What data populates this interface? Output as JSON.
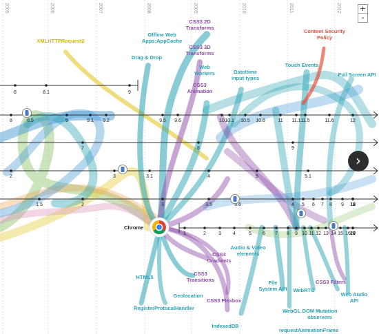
{
  "years": [
    "2005",
    "2006",
    "2007",
    "2008",
    "2009",
    "2010",
    "2011",
    "2012"
  ],
  "zoom": {
    "in": "+",
    "out": "-"
  },
  "next_icon": "›",
  "browser_label": "Chrome",
  "browser_rows": [
    {
      "id": "row1",
      "versions": [
        "8",
        "8.1",
        "9"
      ]
    },
    {
      "id": "row2",
      "versions": [
        "8",
        "8.5",
        "9",
        "9.1",
        "9.2",
        "9.5",
        "9.6",
        "10",
        "10.1",
        "10.5",
        "10.6",
        "11",
        "11.1",
        "11.5",
        "11.6",
        "12"
      ]
    },
    {
      "id": "row3",
      "versions": [
        "7",
        "8",
        "9"
      ]
    },
    {
      "id": "row4",
      "versions": [
        "2",
        "3",
        "3.1",
        "4",
        "5",
        "5.1"
      ]
    },
    {
      "id": "row5",
      "versions": [
        "1.5",
        "2",
        "3",
        "3.5",
        "3.6",
        "4",
        "5",
        "6",
        "7",
        "8",
        "9",
        "10",
        "11",
        "12",
        "13"
      ]
    },
    {
      "id": "row6",
      "versions": [
        "1",
        "2",
        "3",
        "4",
        "5",
        "6",
        "7",
        "8",
        "9",
        "10",
        "11",
        "12",
        "13",
        "14",
        "15",
        "16",
        "17",
        "18",
        "19",
        "20"
      ]
    }
  ],
  "features": [
    "XMLHTTPRequest2",
    "Offline Web Apps:AppCache",
    "Drag & Drop",
    "CSS3 2D Transforms",
    "CSS3 3D Transforms",
    "CSS3 Animation",
    "Web Workers",
    "Date/time input types",
    "Touch Events",
    "Content Security Policy",
    "Full Screen API",
    "HTML5",
    "RegisterProtocalHandler",
    "Geolocation",
    "CSS3 Transitions",
    "CSS3 Gradients",
    "CSS3 Flexbox",
    "Audio & Video elements",
    "IndexedDB",
    "File System API",
    "WebGL",
    "WebRTC",
    "DOM Mutation observers",
    "requestAnimationFrame",
    "CSS3 Filters",
    "Web Audio API"
  ],
  "colors": {
    "teal": "#2aa3b3",
    "purple": "#8e4ba8",
    "blue": "#4a9bd6",
    "green": "#8bc46b",
    "yellow": "#e8d04a",
    "orange": "#f0a050",
    "pink": "#d98ab8",
    "red": "#e5533d"
  }
}
